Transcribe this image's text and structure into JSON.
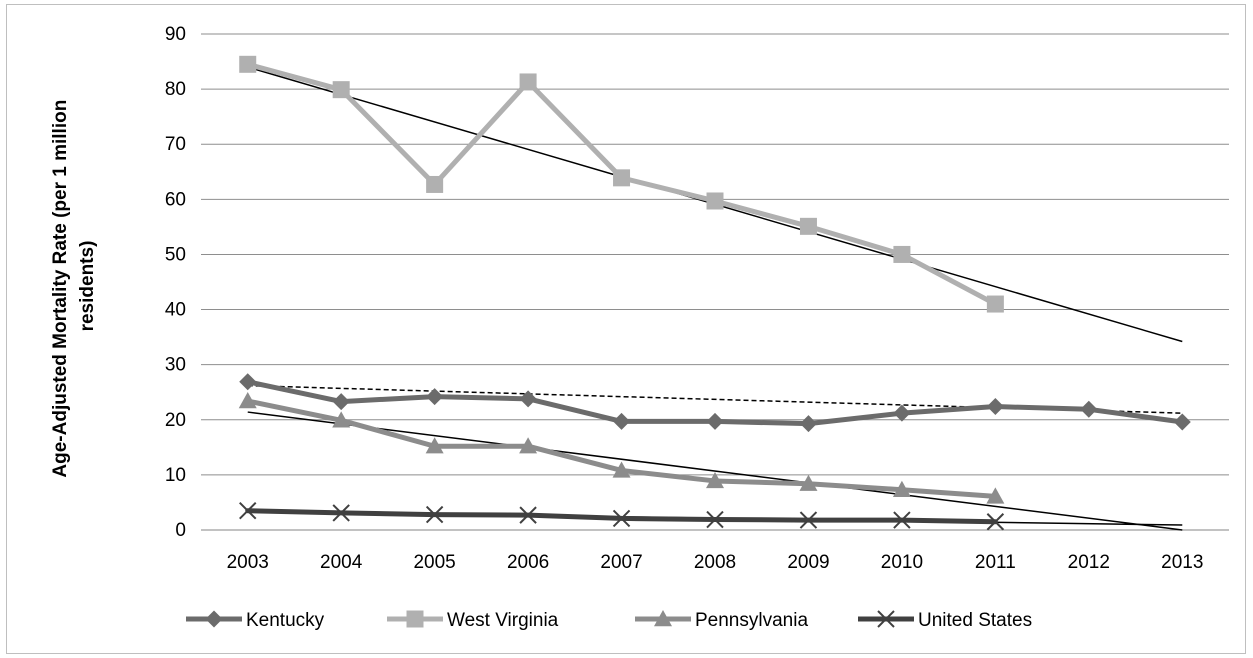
{
  "chart_data": {
    "type": "line",
    "title": "",
    "xlabel": "",
    "ylabel": "Age-Adjusted Mortality Rate (per 1 million residents)",
    "ylabel_lines": [
      "Age-Adjusted Mortality Rate (per 1 million",
      "residents)"
    ],
    "ylim": [
      0,
      90
    ],
    "yticks": [
      0,
      10,
      20,
      30,
      40,
      50,
      60,
      70,
      80,
      90
    ],
    "grid": true,
    "legend": "bottom",
    "categories": [
      "2003",
      "2004",
      "2005",
      "2006",
      "2007",
      "2008",
      "2009",
      "2010",
      "2011",
      "2012",
      "2013"
    ],
    "series": [
      {
        "name": "Kentucky",
        "marker": "diamond",
        "color": "#6b6b6b",
        "values": [
          26.9,
          23.3,
          24.2,
          23.8,
          19.7,
          19.7,
          19.3,
          21.2,
          22.4,
          21.9,
          19.6
        ],
        "trendline": {
          "style": "dashed",
          "start": 26.2,
          "end": 21.2,
          "end_category": "2013"
        }
      },
      {
        "name": "West Virginia",
        "marker": "square",
        "color": "#b0b0b0",
        "values": [
          84.5,
          79.9,
          62.7,
          81.3,
          63.9,
          59.7,
          55.1,
          50.0,
          41.0,
          null,
          null
        ],
        "trendline": {
          "style": "solid",
          "start": 84.0,
          "end": 34.2,
          "end_category": "2013"
        }
      },
      {
        "name": "Pennsylvania",
        "marker": "triangle",
        "color": "#8c8c8c",
        "values": [
          23.4,
          19.9,
          15.2,
          15.2,
          10.8,
          8.9,
          8.4,
          7.3,
          6.1,
          null,
          null
        ],
        "trendline": {
          "style": "solid",
          "start": 21.4,
          "end": 0.0,
          "end_category": "2013"
        }
      },
      {
        "name": "United States",
        "marker": "x",
        "color": "#404040",
        "values": [
          3.5,
          3.1,
          2.8,
          2.7,
          2.1,
          1.9,
          1.8,
          1.8,
          1.5,
          null,
          null
        ],
        "trendline": {
          "style": "solid",
          "start": 3.4,
          "end": 0.9,
          "end_category": "2013"
        }
      }
    ]
  }
}
